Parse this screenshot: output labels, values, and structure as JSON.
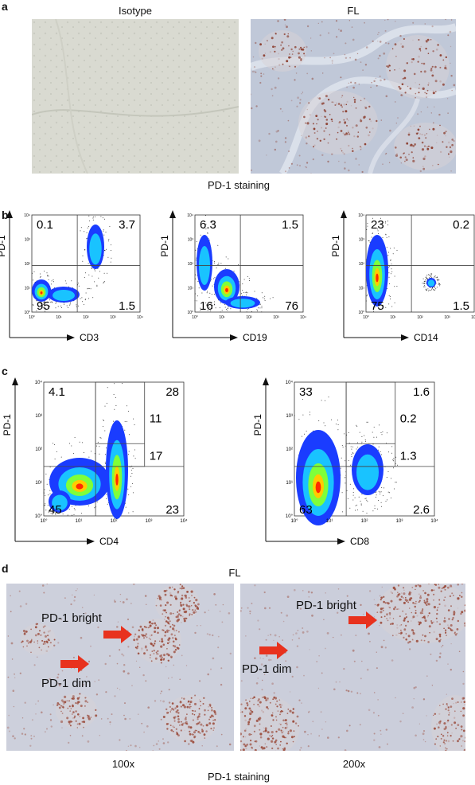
{
  "panels": {
    "a": {
      "letter": "a",
      "left_title": "Isotype",
      "right_title": "FL",
      "caption": "PD-1 staining"
    },
    "b": {
      "letter": "b",
      "plots": [
        {
          "x_label": "CD3",
          "y_label": "PD-1",
          "quadrants": {
            "ul": "0.1",
            "ur": "3.7",
            "ll": "95",
            "lr": "1.5"
          }
        },
        {
          "x_label": "CD19",
          "y_label": "PD-1",
          "quadrants": {
            "ul": "6.3",
            "ur": "1.5",
            "ll": "16",
            "lr": "76"
          }
        },
        {
          "x_label": "CD14",
          "y_label": "PD-1",
          "quadrants": {
            "ul": "23",
            "ur": "0.2",
            "ll": "75",
            "lr": "1.5"
          }
        }
      ],
      "ticks": [
        "10°",
        "10¹",
        "10²",
        "10³",
        "10⁴"
      ]
    },
    "c": {
      "letter": "c",
      "plots": [
        {
          "x_label": "CD4",
          "y_label": "PD-1",
          "quadrants": {
            "ul": "4.1",
            "ur": "28",
            "ll": "45",
            "lr": "23"
          },
          "gates": [
            "11",
            "17"
          ]
        },
        {
          "x_label": "CD8",
          "y_label": "PD-1",
          "quadrants": {
            "ul": "33",
            "ur": "1.6",
            "ll": "63",
            "lr": "2.6"
          },
          "gates": [
            "0.2",
            "1.3"
          ]
        }
      ],
      "ticks": [
        "10°",
        "10¹",
        "10²",
        "10³",
        "10⁴"
      ]
    },
    "d": {
      "letter": "d",
      "title": "FL",
      "left_labels": {
        "bright": "PD-1 bright",
        "dim": "PD-1 dim",
        "mag": "100x"
      },
      "right_labels": {
        "bright": "PD-1 bright",
        "dim": "PD-1 dim",
        "mag": "200x"
      },
      "caption": "PD-1 staining"
    }
  },
  "colors": {
    "arrow": "#e8321e",
    "flow_blue": "#1a3cff",
    "stain_brown": "#8a3a2a"
  }
}
